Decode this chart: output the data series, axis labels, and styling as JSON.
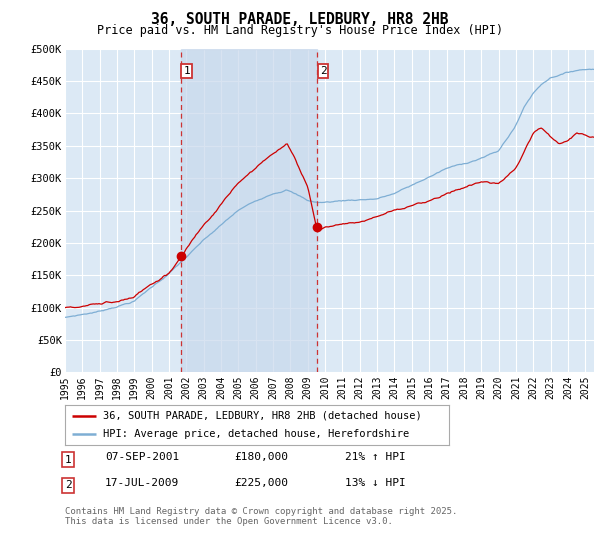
{
  "title": "36, SOUTH PARADE, LEDBURY, HR8 2HB",
  "subtitle": "Price paid vs. HM Land Registry's House Price Index (HPI)",
  "ylim": [
    0,
    500000
  ],
  "xlim_start": 1995.0,
  "xlim_end": 2025.5,
  "background_color": "#dce9f5",
  "grid_color": "#ffffff",
  "transaction1_x": 2001.69,
  "transaction1_y": 180000,
  "transaction2_x": 2009.54,
  "transaction2_y": 225000,
  "legend_line1": "36, SOUTH PARADE, LEDBURY, HR8 2HB (detached house)",
  "legend_line2": "HPI: Average price, detached house, Herefordshire",
  "footer": "Contains HM Land Registry data © Crown copyright and database right 2025.\nThis data is licensed under the Open Government Licence v3.0.",
  "line_color_red": "#cc0000",
  "line_color_blue": "#7eaed4",
  "dashed_line_color": "#cc3333",
  "shade_color": "#c8d8ec",
  "t1_label": "1",
  "t2_label": "2",
  "row1_date": "07-SEP-2001",
  "row1_price": "£180,000",
  "row1_hpi": "21% ↑ HPI",
  "row2_date": "17-JUL-2009",
  "row2_price": "£225,000",
  "row2_hpi": "13% ↓ HPI"
}
